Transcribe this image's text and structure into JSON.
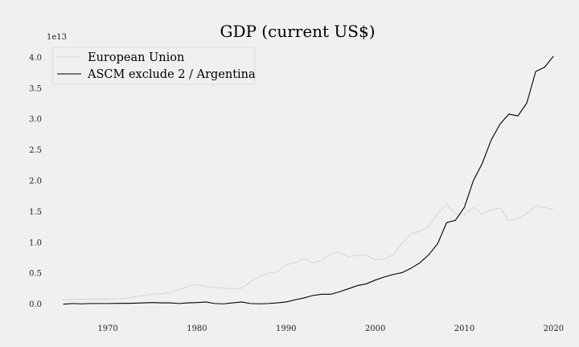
{
  "chart_data": {
    "type": "line",
    "title": "GDP (current US$)",
    "xlabel": "",
    "ylabel": "",
    "y_offset_label": "1e13",
    "xlim": [
      1963.5,
      2021.5
    ],
    "ylim": [
      -0.2,
      4.2
    ],
    "x_ticks": [
      1970,
      1980,
      1990,
      2000,
      2010,
      2020
    ],
    "y_ticks": [
      0.0,
      0.5,
      1.0,
      1.5,
      2.0,
      2.5,
      3.0,
      3.5,
      4.0
    ],
    "y_tick_labels": [
      "0.0",
      "0.5",
      "1.0",
      "1.5",
      "2.0",
      "2.5",
      "3.0",
      "3.5",
      "4.0"
    ],
    "grid": false,
    "legend_position": "top-left",
    "x": [
      1965,
      1966,
      1967,
      1968,
      1969,
      1970,
      1971,
      1972,
      1973,
      1974,
      1975,
      1976,
      1977,
      1978,
      1979,
      1980,
      1981,
      1982,
      1983,
      1984,
      1985,
      1986,
      1987,
      1988,
      1989,
      1990,
      1991,
      1992,
      1993,
      1994,
      1995,
      1996,
      1997,
      1998,
      1999,
      2000,
      2001,
      2002,
      2003,
      2004,
      2005,
      2006,
      2007,
      2008,
      2009,
      2010,
      2011,
      2012,
      2013,
      2014,
      2015,
      2016,
      2017,
      2018,
      2019,
      2020
    ],
    "series": [
      {
        "name": "European Union",
        "style": "dotted",
        "color": "#aaaaaa",
        "values": [
          0.07,
          0.075,
          0.078,
          0.08,
          0.082,
          0.08,
          0.085,
          0.095,
          0.12,
          0.14,
          0.16,
          0.17,
          0.19,
          0.24,
          0.29,
          0.32,
          0.28,
          0.27,
          0.26,
          0.25,
          0.26,
          0.36,
          0.45,
          0.5,
          0.52,
          0.64,
          0.67,
          0.74,
          0.67,
          0.71,
          0.82,
          0.84,
          0.77,
          0.79,
          0.79,
          0.72,
          0.73,
          0.8,
          0.98,
          1.14,
          1.18,
          1.26,
          1.47,
          1.62,
          1.46,
          1.45,
          1.57,
          1.46,
          1.53,
          1.56,
          1.35,
          1.38,
          1.47,
          1.59,
          1.57,
          1.53
        ]
      },
      {
        "name": "ASCM exclude 2 / Argentina",
        "style": "solid",
        "color": "#000000",
        "values": [
          0.0,
          0.01,
          0.005,
          0.01,
          0.01,
          0.01,
          0.012,
          0.012,
          0.015,
          0.02,
          0.025,
          0.02,
          0.02,
          0.01,
          0.02,
          0.025,
          0.035,
          0.01,
          0.005,
          0.02,
          0.035,
          0.01,
          0.005,
          0.01,
          0.02,
          0.035,
          0.07,
          0.1,
          0.14,
          0.16,
          0.16,
          0.2,
          0.25,
          0.3,
          0.33,
          0.39,
          0.44,
          0.48,
          0.51,
          0.58,
          0.67,
          0.8,
          0.98,
          1.32,
          1.36,
          1.57,
          2.0,
          2.28,
          2.66,
          2.92,
          3.08,
          3.05,
          3.26,
          3.77,
          3.84,
          4.02
        ]
      }
    ]
  }
}
